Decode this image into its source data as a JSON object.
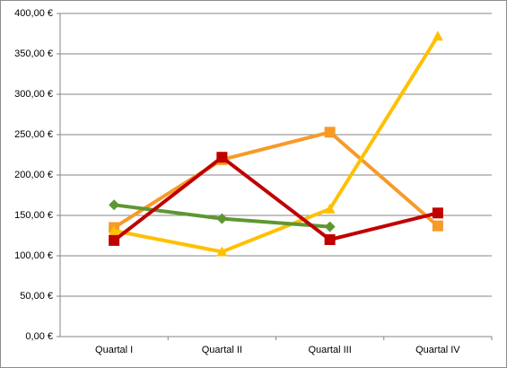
{
  "chart_data": {
    "type": "line",
    "categories": [
      "Quartal I",
      "Quartal II",
      "Quartal III",
      "Quartal IV"
    ],
    "series": [
      {
        "color": "#f79a28",
        "marker": "square",
        "values": [
          135,
          219,
          253,
          137
        ]
      },
      {
        "color": "#ffc000",
        "marker": "triangle",
        "values": [
          131,
          105,
          158,
          372
        ]
      },
      {
        "color": "#5e9732",
        "marker": "diamond",
        "values": [
          163,
          146,
          136,
          null
        ]
      },
      {
        "color": "#c00000",
        "marker": "square",
        "values": [
          119,
          222,
          120,
          153
        ]
      }
    ],
    "ylim": [
      0,
      400
    ],
    "yticks": [
      {
        "value": 0,
        "label": "0,00 €"
      },
      {
        "value": 50,
        "label": "50,00 €"
      },
      {
        "value": 100,
        "label": "100,00 €"
      },
      {
        "value": 150,
        "label": "150,00 €"
      },
      {
        "value": 200,
        "label": "200,00 €"
      },
      {
        "value": 250,
        "label": "250,00 €"
      },
      {
        "value": 300,
        "label": "300,00 €"
      },
      {
        "value": 350,
        "label": "350,00 €"
      },
      {
        "value": 400,
        "label": "400,00 €"
      }
    ],
    "grid": true
  }
}
